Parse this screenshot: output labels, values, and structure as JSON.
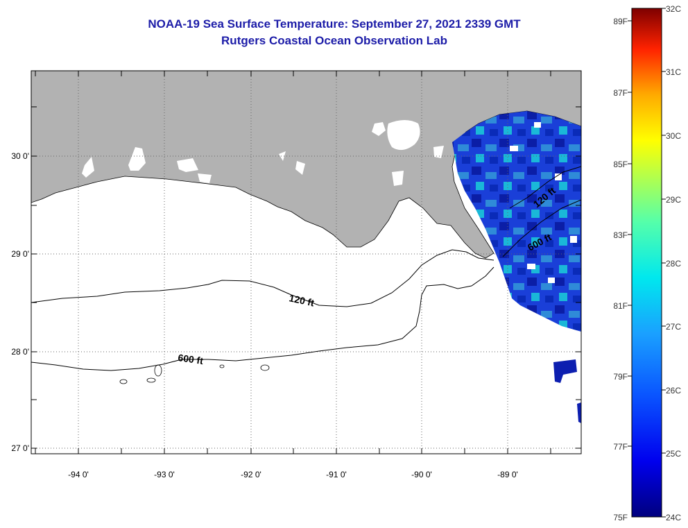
{
  "title": "NOAA-19 Sea Surface Temperature:  September 27, 2021 2339 GMT",
  "subtitle": "Rutgers Coastal Ocean Observation Lab",
  "colors": {
    "land": "#b2b2b2",
    "title": "#1c1ca8",
    "frame": "#000000",
    "grid": "#666666"
  },
  "map": {
    "lat_labels": [
      "30 0'",
      "29 0'",
      "28 0'",
      "27 0'"
    ],
    "lon_labels": [
      "-94 0'",
      "-93 0'",
      "-92 0'",
      "-91 0'",
      "-90 0'",
      "-89 0'"
    ],
    "contour_labels": [
      {
        "text": "120 ft",
        "depth_ft": 120
      },
      {
        "text": "600 ft",
        "depth_ft": 600
      },
      {
        "text": "600 ft",
        "depth_ft": 600
      },
      {
        "text": "120 ft",
        "depth_ft": 120
      }
    ]
  },
  "colorbar": {
    "fahrenheit_labels": [
      "89F",
      "87F",
      "85F",
      "83F",
      "81F",
      "79F",
      "77F",
      "75F"
    ],
    "celsius_labels": [
      "32C",
      "31C",
      "30C",
      "29C",
      "28C",
      "27C",
      "26C",
      "25C",
      "24C"
    ],
    "range_c": [
      24,
      32
    ],
    "range_f": [
      75,
      89
    ]
  }
}
